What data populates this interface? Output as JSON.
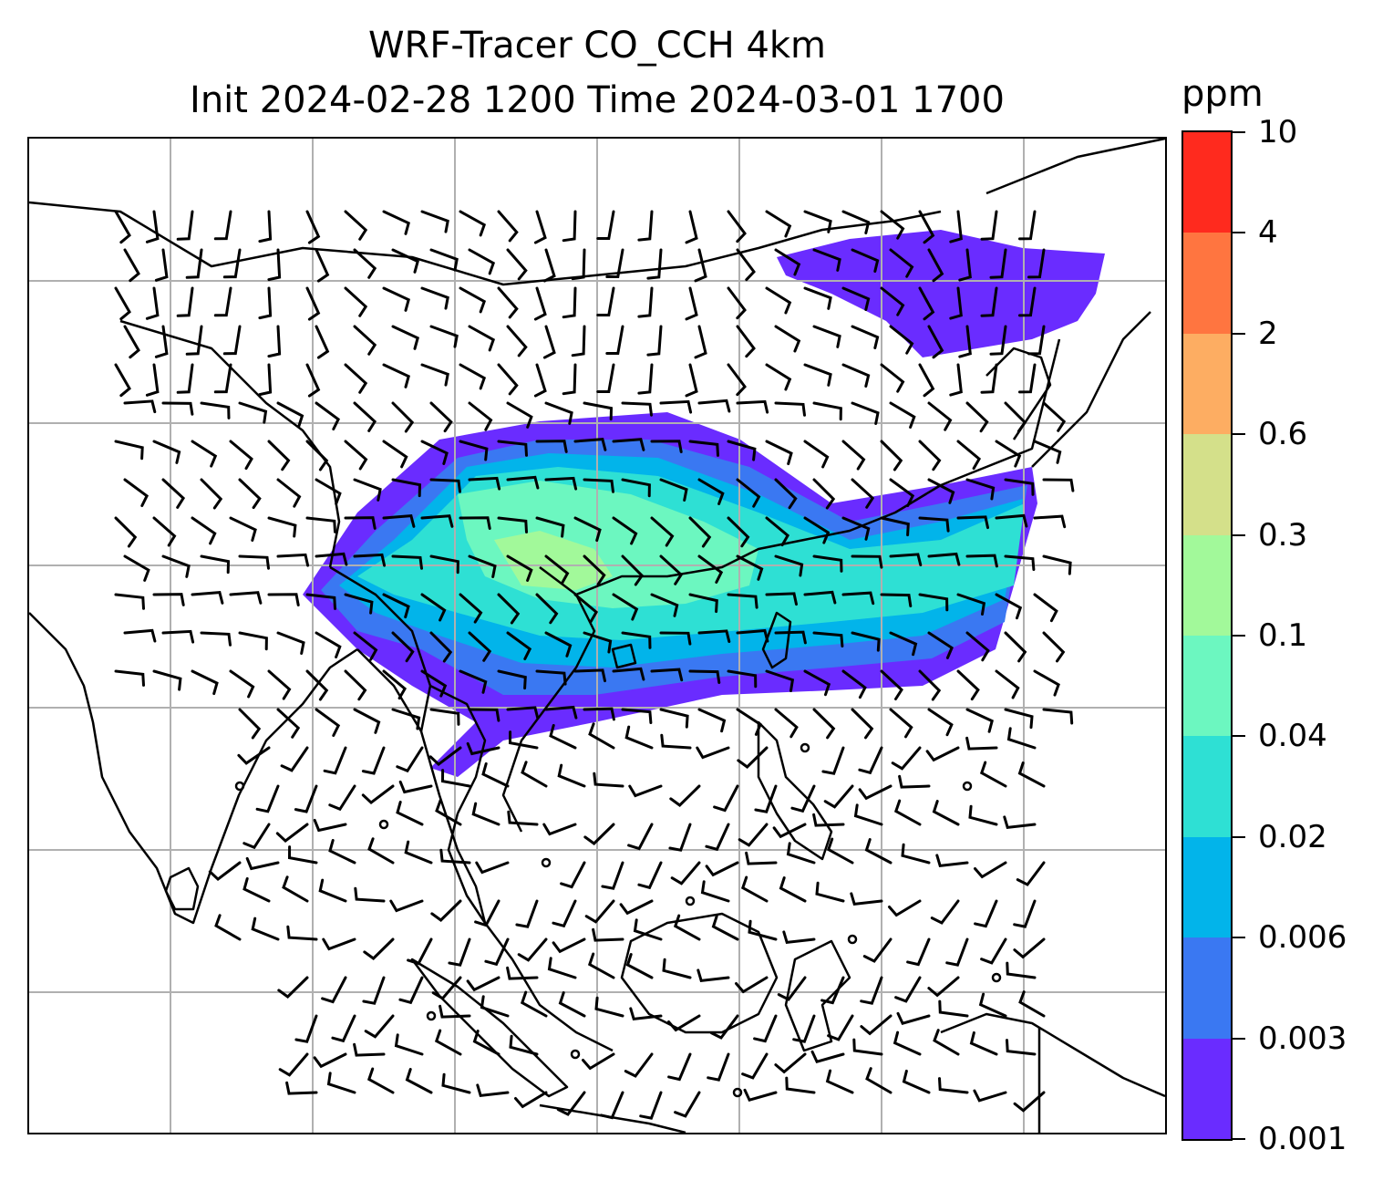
{
  "title": {
    "line1": "WRF-Tracer CO_CCH 4km",
    "line2": "Init 2024-02-28 1200 Time 2024-03-01 1700"
  },
  "colorbar": {
    "unit": "ppm",
    "levels": [
      "0.001",
      "0.003",
      "0.006",
      "0.02",
      "0.04",
      "0.1",
      "0.3",
      "0.6",
      "2",
      "4",
      "10"
    ],
    "colors": [
      "#6a2cff",
      "#3a78f2",
      "#02b4ea",
      "#2ee0d4",
      "#6cf7c0",
      "#a2f99a",
      "#d4e08a",
      "#fdad62",
      "#ff7540",
      "#ff2a1e"
    ]
  },
  "map": {
    "gridlines": true,
    "gridline_color": "#b0b0b0",
    "coastline_color": "#000000",
    "wind_barb_color": "#000000"
  }
}
